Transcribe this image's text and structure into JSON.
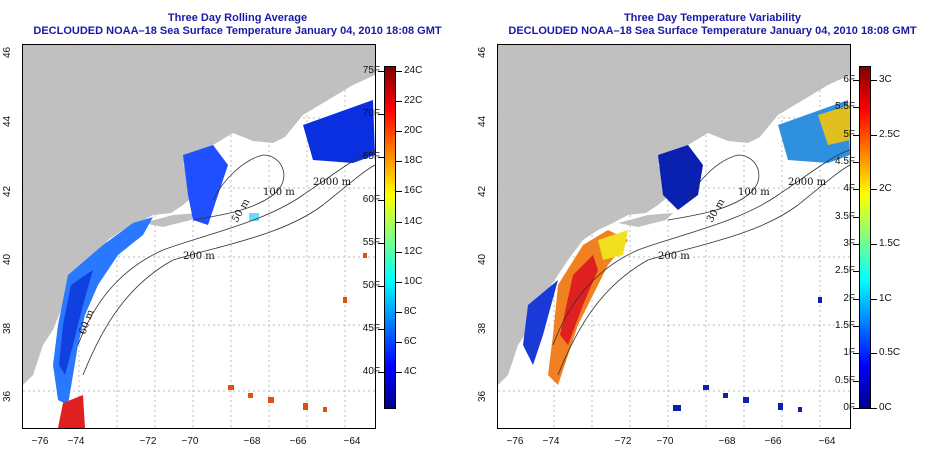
{
  "panels": [
    {
      "title": "Three Day Rolling Average",
      "subtitle": "DECLOUDED NOAA–18 Sea Surface Temperature January 04, 2010 18:08 GMT",
      "colorbar_left_labels": [
        "75F",
        "70F",
        "65F",
        "60F",
        "55F",
        "50F",
        "45F",
        "40F"
      ],
      "colorbar_right_labels": [
        "24C",
        "22C",
        "20C",
        "18C",
        "16C",
        "14C",
        "12C",
        "10C",
        "8C",
        "6C",
        "4C"
      ],
      "colorbar_colors": [
        "#00008f",
        "#0000ff",
        "#0080ff",
        "#00ffff",
        "#80ff80",
        "#ffff00",
        "#ff8000",
        "#ff0000",
        "#800000"
      ]
    },
    {
      "title": "Three Day Temperature Variability",
      "subtitle": "DECLOUDED NOAA–18 Sea Surface Temperature January 04, 2010 18:08 GMT",
      "colorbar_left_labels": [
        "6F",
        "5.5F",
        "5F",
        "4.5F",
        "4F",
        "3.5F",
        "3F",
        "2.5F",
        "2F",
        "1.5F",
        "1F",
        "0.5F",
        "0F"
      ],
      "colorbar_right_labels": [
        "3C",
        "2.5C",
        "2C",
        "1.5C",
        "1C",
        "0.5C",
        "0C"
      ],
      "colorbar_colors": [
        "#00008f",
        "#0000ff",
        "#0080ff",
        "#00ffff",
        "#80ff80",
        "#ffff00",
        "#ff8000",
        "#ff0000",
        "#800000"
      ]
    }
  ],
  "axes": {
    "x_ticks": [
      "−76",
      "−74",
      "−72",
      "−70",
      "−68",
      "−66",
      "−64"
    ],
    "y_ticks": [
      "36",
      "38",
      "40",
      "42",
      "44",
      "46"
    ]
  },
  "contour_labels": [
    "50 m",
    "200 m",
    "100 m",
    "2000 m",
    "30 m",
    "60 m"
  ],
  "colors": {
    "land": "#c0c0c0",
    "title": "#1a1aa6",
    "grid": "#bbbbbb"
  }
}
